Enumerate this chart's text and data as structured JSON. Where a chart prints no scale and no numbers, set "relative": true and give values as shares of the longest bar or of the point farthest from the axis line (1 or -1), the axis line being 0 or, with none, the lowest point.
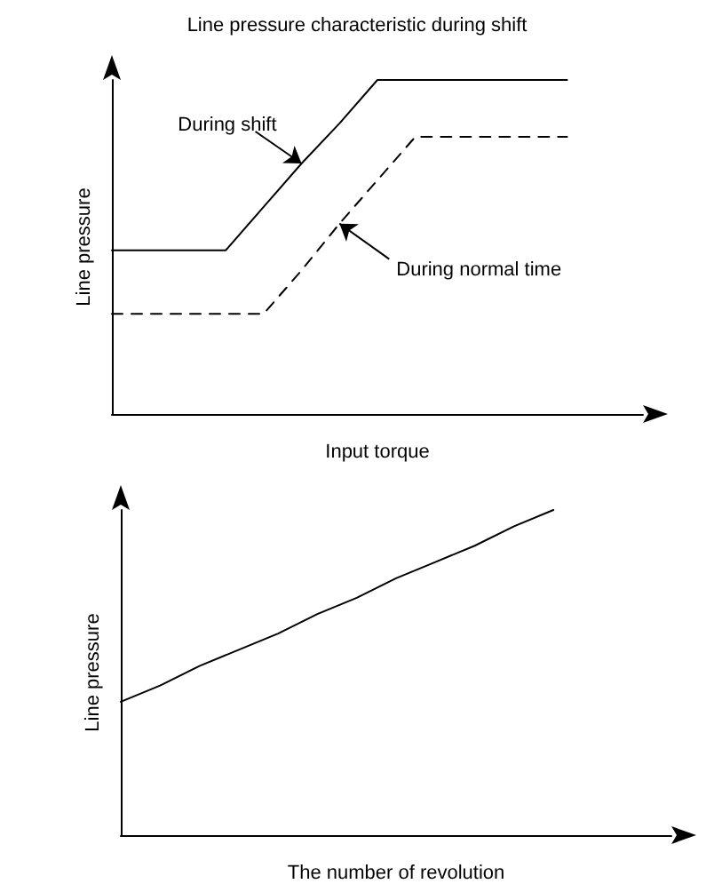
{
  "chart_data": [
    {
      "type": "line",
      "title": "Line pressure characteristic during shift",
      "xlabel": "Input torque",
      "ylabel": "Line pressure",
      "relative": true,
      "grid": false,
      "marker": "none",
      "categories": [
        null,
        null,
        null,
        null,
        null,
        null,
        null,
        null,
        null,
        null,
        null,
        null,
        null,
        null,
        null
      ],
      "series": [
        {
          "color": "#000000",
          "line_style": "solid",
          "values": [
            0.49,
            0.49,
            0.49,
            0.49,
            0.62,
            0.75,
            0.87,
            1,
            1,
            1,
            1,
            1,
            1,
            null,
            null
          ]
        },
        {
          "color": "#000000",
          "line_style": "dashed",
          "values": [
            0.3,
            0.3,
            0.3,
            0.3,
            0.3,
            0.43,
            0.57,
            0.7,
            0.83,
            0.83,
            0.83,
            0.83,
            0.83,
            null,
            null
          ]
        }
      ],
      "annotations": [
        "During shift",
        "During normal time"
      ]
    },
    {
      "type": "line",
      "xlabel": "The number of revolution",
      "ylabel": "Line pressure",
      "relative": true,
      "grid": false,
      "marker": "none",
      "categories": [
        null,
        null,
        null,
        null,
        null,
        null,
        null,
        null,
        null,
        null,
        null,
        null,
        null,
        null,
        null
      ],
      "series": [
        {
          "color": "#000000",
          "line_style": "solid",
          "values": [
            0.41,
            0.46,
            0.52,
            0.57,
            0.62,
            0.68,
            0.73,
            0.79,
            0.84,
            0.89,
            0.95,
            1,
            null,
            null,
            null
          ]
        }
      ]
    }
  ]
}
